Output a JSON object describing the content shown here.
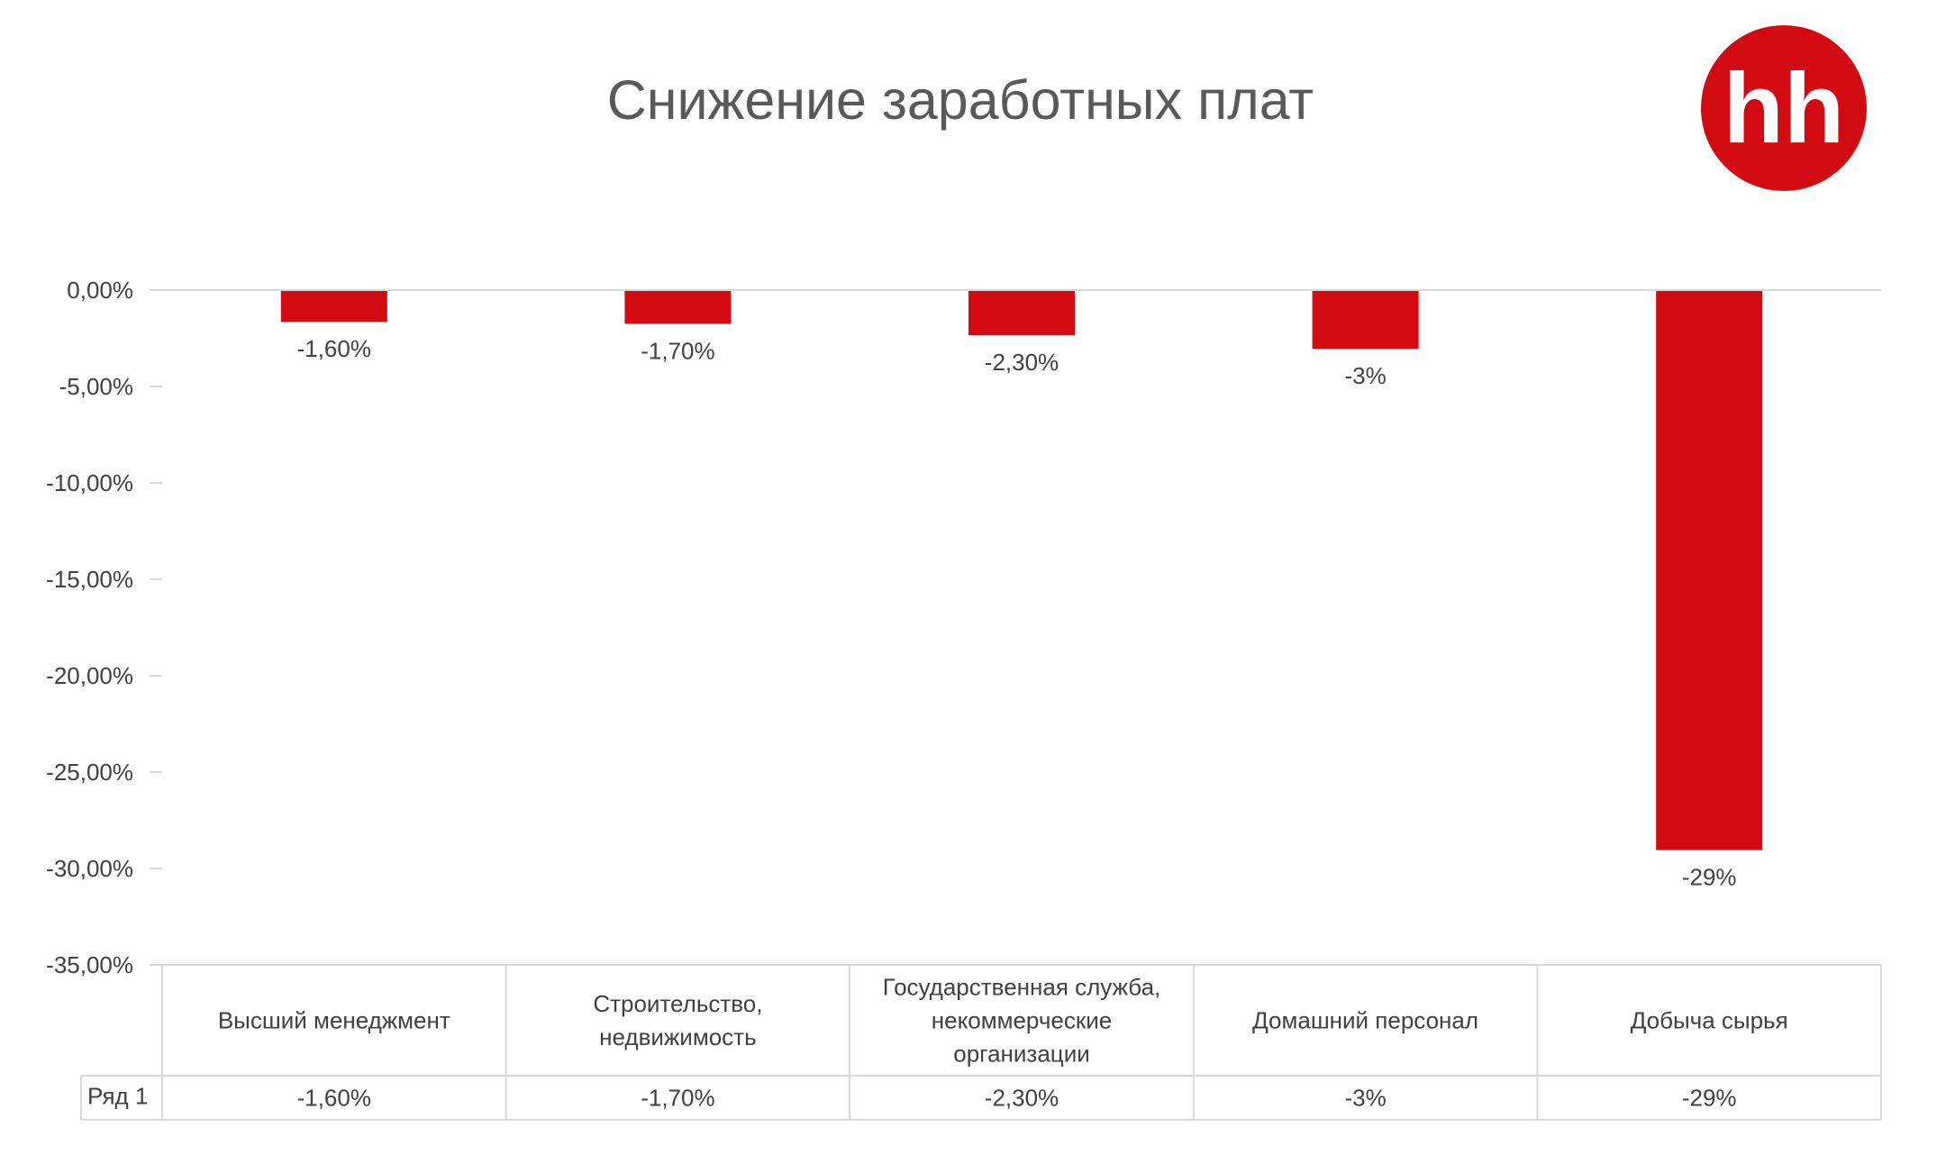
{
  "brand": {
    "logo_text": "hh",
    "logo_color": "#d20a11",
    "logo_icon": "hh-logo-icon"
  },
  "chart_data": {
    "type": "bar",
    "title": "Снижение заработных плат",
    "categories": [
      "Высший менеджмент",
      "Строительство, недвижимость",
      "Государственная служба, некоммерческие организации",
      "Домашний персонал",
      "Добыча сырья"
    ],
    "category_lines": [
      [
        "Высший менеджмент"
      ],
      [
        "Строительство,",
        "недвижимость"
      ],
      [
        "Государственная служба,",
        "некоммерческие",
        "организации"
      ],
      [
        "Домашний персонал"
      ],
      [
        "Добыча сырья"
      ]
    ],
    "series": [
      {
        "name": "Ряд 1",
        "values": [
          -1.6,
          -1.7,
          -2.3,
          -3,
          -29
        ],
        "labels": [
          "-1,60%",
          "-1,70%",
          "-2,30%",
          "-3%",
          "-29%"
        ],
        "color": "#d20a11"
      }
    ],
    "ylim": [
      -35,
      0
    ],
    "yticks": [
      0,
      -5,
      -10,
      -15,
      -20,
      -25,
      -30,
      -35
    ],
    "ytick_labels": [
      "0,00%",
      "-5,00%",
      "-10,00%",
      "-15,00%",
      "-20,00%",
      "-25,00%",
      "-30,00%",
      "-35,00%"
    ],
    "data_table": true,
    "xlabel": "",
    "ylabel": ""
  }
}
